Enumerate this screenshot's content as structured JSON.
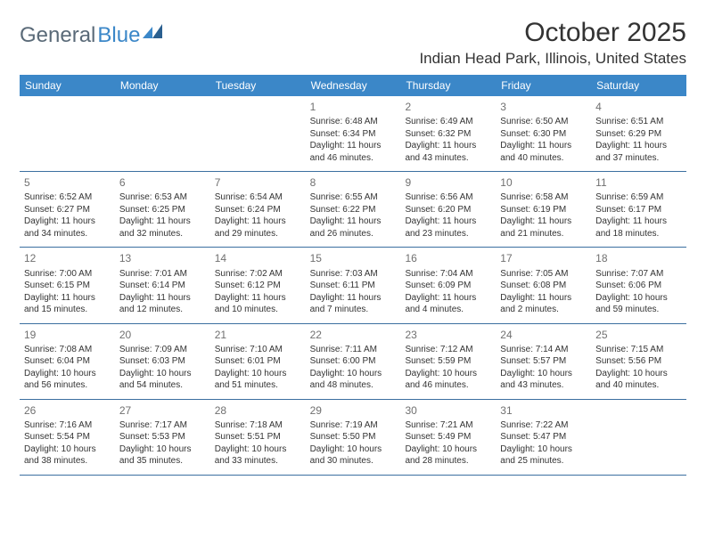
{
  "logo": {
    "part1": "General",
    "part2": "Blue"
  },
  "title": "October 2025",
  "location": "Indian Head Park, Illinois, United States",
  "header_bg": "#3b87c8",
  "day_names": [
    "Sunday",
    "Monday",
    "Tuesday",
    "Wednesday",
    "Thursday",
    "Friday",
    "Saturday"
  ],
  "weeks": [
    [
      null,
      null,
      null,
      {
        "d": "1",
        "sr": "Sunrise: 6:48 AM",
        "ss": "Sunset: 6:34 PM",
        "dl1": "Daylight: 11 hours",
        "dl2": "and 46 minutes."
      },
      {
        "d": "2",
        "sr": "Sunrise: 6:49 AM",
        "ss": "Sunset: 6:32 PM",
        "dl1": "Daylight: 11 hours",
        "dl2": "and 43 minutes."
      },
      {
        "d": "3",
        "sr": "Sunrise: 6:50 AM",
        "ss": "Sunset: 6:30 PM",
        "dl1": "Daylight: 11 hours",
        "dl2": "and 40 minutes."
      },
      {
        "d": "4",
        "sr": "Sunrise: 6:51 AM",
        "ss": "Sunset: 6:29 PM",
        "dl1": "Daylight: 11 hours",
        "dl2": "and 37 minutes."
      }
    ],
    [
      {
        "d": "5",
        "sr": "Sunrise: 6:52 AM",
        "ss": "Sunset: 6:27 PM",
        "dl1": "Daylight: 11 hours",
        "dl2": "and 34 minutes."
      },
      {
        "d": "6",
        "sr": "Sunrise: 6:53 AM",
        "ss": "Sunset: 6:25 PM",
        "dl1": "Daylight: 11 hours",
        "dl2": "and 32 minutes."
      },
      {
        "d": "7",
        "sr": "Sunrise: 6:54 AM",
        "ss": "Sunset: 6:24 PM",
        "dl1": "Daylight: 11 hours",
        "dl2": "and 29 minutes."
      },
      {
        "d": "8",
        "sr": "Sunrise: 6:55 AM",
        "ss": "Sunset: 6:22 PM",
        "dl1": "Daylight: 11 hours",
        "dl2": "and 26 minutes."
      },
      {
        "d": "9",
        "sr": "Sunrise: 6:56 AM",
        "ss": "Sunset: 6:20 PM",
        "dl1": "Daylight: 11 hours",
        "dl2": "and 23 minutes."
      },
      {
        "d": "10",
        "sr": "Sunrise: 6:58 AM",
        "ss": "Sunset: 6:19 PM",
        "dl1": "Daylight: 11 hours",
        "dl2": "and 21 minutes."
      },
      {
        "d": "11",
        "sr": "Sunrise: 6:59 AM",
        "ss": "Sunset: 6:17 PM",
        "dl1": "Daylight: 11 hours",
        "dl2": "and 18 minutes."
      }
    ],
    [
      {
        "d": "12",
        "sr": "Sunrise: 7:00 AM",
        "ss": "Sunset: 6:15 PM",
        "dl1": "Daylight: 11 hours",
        "dl2": "and 15 minutes."
      },
      {
        "d": "13",
        "sr": "Sunrise: 7:01 AM",
        "ss": "Sunset: 6:14 PM",
        "dl1": "Daylight: 11 hours",
        "dl2": "and 12 minutes."
      },
      {
        "d": "14",
        "sr": "Sunrise: 7:02 AM",
        "ss": "Sunset: 6:12 PM",
        "dl1": "Daylight: 11 hours",
        "dl2": "and 10 minutes."
      },
      {
        "d": "15",
        "sr": "Sunrise: 7:03 AM",
        "ss": "Sunset: 6:11 PM",
        "dl1": "Daylight: 11 hours",
        "dl2": "and 7 minutes."
      },
      {
        "d": "16",
        "sr": "Sunrise: 7:04 AM",
        "ss": "Sunset: 6:09 PM",
        "dl1": "Daylight: 11 hours",
        "dl2": "and 4 minutes."
      },
      {
        "d": "17",
        "sr": "Sunrise: 7:05 AM",
        "ss": "Sunset: 6:08 PM",
        "dl1": "Daylight: 11 hours",
        "dl2": "and 2 minutes."
      },
      {
        "d": "18",
        "sr": "Sunrise: 7:07 AM",
        "ss": "Sunset: 6:06 PM",
        "dl1": "Daylight: 10 hours",
        "dl2": "and 59 minutes."
      }
    ],
    [
      {
        "d": "19",
        "sr": "Sunrise: 7:08 AM",
        "ss": "Sunset: 6:04 PM",
        "dl1": "Daylight: 10 hours",
        "dl2": "and 56 minutes."
      },
      {
        "d": "20",
        "sr": "Sunrise: 7:09 AM",
        "ss": "Sunset: 6:03 PM",
        "dl1": "Daylight: 10 hours",
        "dl2": "and 54 minutes."
      },
      {
        "d": "21",
        "sr": "Sunrise: 7:10 AM",
        "ss": "Sunset: 6:01 PM",
        "dl1": "Daylight: 10 hours",
        "dl2": "and 51 minutes."
      },
      {
        "d": "22",
        "sr": "Sunrise: 7:11 AM",
        "ss": "Sunset: 6:00 PM",
        "dl1": "Daylight: 10 hours",
        "dl2": "and 48 minutes."
      },
      {
        "d": "23",
        "sr": "Sunrise: 7:12 AM",
        "ss": "Sunset: 5:59 PM",
        "dl1": "Daylight: 10 hours",
        "dl2": "and 46 minutes."
      },
      {
        "d": "24",
        "sr": "Sunrise: 7:14 AM",
        "ss": "Sunset: 5:57 PM",
        "dl1": "Daylight: 10 hours",
        "dl2": "and 43 minutes."
      },
      {
        "d": "25",
        "sr": "Sunrise: 7:15 AM",
        "ss": "Sunset: 5:56 PM",
        "dl1": "Daylight: 10 hours",
        "dl2": "and 40 minutes."
      }
    ],
    [
      {
        "d": "26",
        "sr": "Sunrise: 7:16 AM",
        "ss": "Sunset: 5:54 PM",
        "dl1": "Daylight: 10 hours",
        "dl2": "and 38 minutes."
      },
      {
        "d": "27",
        "sr": "Sunrise: 7:17 AM",
        "ss": "Sunset: 5:53 PM",
        "dl1": "Daylight: 10 hours",
        "dl2": "and 35 minutes."
      },
      {
        "d": "28",
        "sr": "Sunrise: 7:18 AM",
        "ss": "Sunset: 5:51 PM",
        "dl1": "Daylight: 10 hours",
        "dl2": "and 33 minutes."
      },
      {
        "d": "29",
        "sr": "Sunrise: 7:19 AM",
        "ss": "Sunset: 5:50 PM",
        "dl1": "Daylight: 10 hours",
        "dl2": "and 30 minutes."
      },
      {
        "d": "30",
        "sr": "Sunrise: 7:21 AM",
        "ss": "Sunset: 5:49 PM",
        "dl1": "Daylight: 10 hours",
        "dl2": "and 28 minutes."
      },
      {
        "d": "31",
        "sr": "Sunrise: 7:22 AM",
        "ss": "Sunset: 5:47 PM",
        "dl1": "Daylight: 10 hours",
        "dl2": "and 25 minutes."
      },
      null
    ]
  ]
}
